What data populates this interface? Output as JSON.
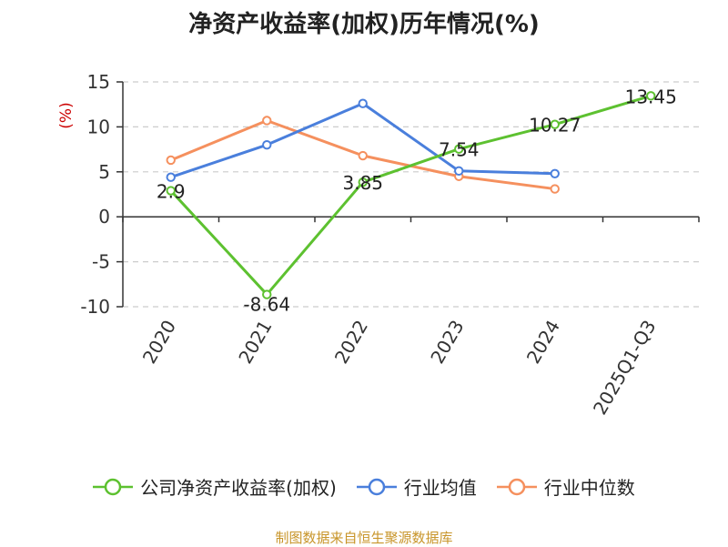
{
  "title": "净资产收益率(加权)历年情况(%)",
  "source_note": "制图数据来自恒生聚源数据库",
  "colors": {
    "axis": "#333333",
    "grid": "#cccccc",
    "unit": "#cc0000"
  },
  "chart_data": {
    "type": "line",
    "title": "净资产收益率(加权)历年情况(%)",
    "ylabel": "(%)",
    "xlabel": "",
    "categories": [
      "2020",
      "2021",
      "2022",
      "2023",
      "2024",
      "2025Q1-Q3"
    ],
    "ylim": [
      -10,
      15
    ],
    "yticks": [
      -10,
      -5,
      0,
      5,
      10,
      15
    ],
    "grid": true,
    "legend_position": "bottom",
    "series": [
      {
        "name": "公司净资产收益率(加权)",
        "color": "#5dc130",
        "values": [
          2.9,
          -8.64,
          3.85,
          7.54,
          10.27,
          13.45
        ],
        "data_labels": [
          "2.9",
          "-8.64",
          "3.85",
          "7.54",
          "10.27",
          "13.45"
        ]
      },
      {
        "name": "行业均值",
        "color": "#4a7fdc",
        "values": [
          4.4,
          8.0,
          12.6,
          5.1,
          4.8,
          null
        ]
      },
      {
        "name": "行业中位数",
        "color": "#f5905e",
        "values": [
          6.3,
          10.7,
          6.8,
          4.5,
          3.1,
          null
        ]
      }
    ]
  }
}
